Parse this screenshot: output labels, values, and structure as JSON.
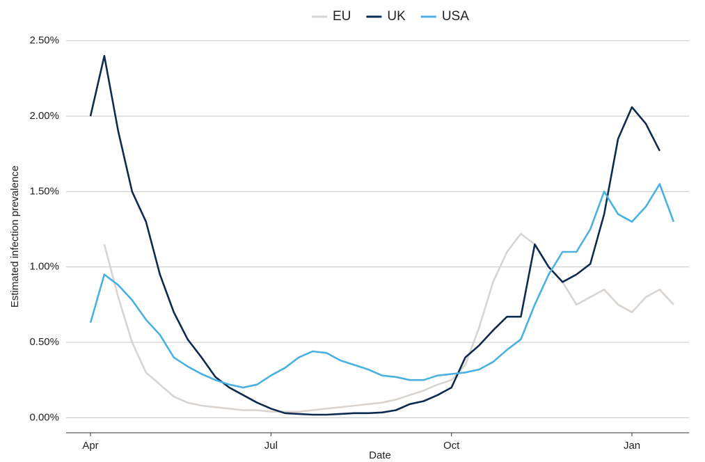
{
  "chart_data": {
    "type": "line",
    "xlabel": "Date",
    "ylabel": "Estimated infection prevalence",
    "categories": [
      "Apr",
      null,
      null,
      null,
      null,
      null,
      null,
      null,
      null,
      null,
      null,
      null,
      null,
      "Jul",
      null,
      null,
      null,
      null,
      null,
      null,
      null,
      null,
      null,
      null,
      null,
      null,
      "Oct",
      null,
      null,
      null,
      null,
      null,
      null,
      null,
      null,
      null,
      null,
      null,
      null,
      "Jan",
      null,
      null,
      null
    ],
    "series": [
      {
        "name": "EU",
        "color": "#d9d4cf",
        "values": [
          null,
          1.15,
          0.8,
          0.5,
          0.3,
          0.22,
          0.14,
          0.1,
          0.08,
          0.07,
          0.06,
          0.05,
          0.05,
          0.04,
          0.04,
          0.04,
          0.05,
          0.06,
          0.07,
          0.08,
          0.09,
          0.1,
          0.12,
          0.15,
          0.18,
          0.22,
          0.25,
          0.35,
          0.6,
          0.9,
          1.1,
          1.22,
          1.15,
          1.0,
          0.9,
          0.75,
          0.8,
          0.85,
          0.75,
          0.7,
          0.8,
          0.85,
          0.75
        ]
      },
      {
        "name": "UK",
        "color": "#0d2a4f",
        "values": [
          2.0,
          2.4,
          1.9,
          1.5,
          1.3,
          0.95,
          0.7,
          0.52,
          0.4,
          0.27,
          0.2,
          0.15,
          0.1,
          0.06,
          0.03,
          0.025,
          0.02,
          0.02,
          0.025,
          0.03,
          0.03,
          0.035,
          0.05,
          0.09,
          0.11,
          0.15,
          0.2,
          0.4,
          0.48,
          0.58,
          0.67,
          0.67,
          1.15,
          1.0,
          0.9,
          0.95,
          1.02,
          1.35,
          1.85,
          2.06,
          1.95,
          1.77,
          null
        ]
      },
      {
        "name": "USA",
        "color": "#4ab0e0",
        "values": [
          0.63,
          0.95,
          0.88,
          0.78,
          0.65,
          0.55,
          0.4,
          0.34,
          0.29,
          0.25,
          0.22,
          0.2,
          0.22,
          0.28,
          0.33,
          0.4,
          0.44,
          0.43,
          0.38,
          0.35,
          0.32,
          0.28,
          0.27,
          0.25,
          0.25,
          0.28,
          0.29,
          0.3,
          0.32,
          0.37,
          0.45,
          0.52,
          0.75,
          0.95,
          1.1,
          1.1,
          1.25,
          1.5,
          1.35,
          1.3,
          1.4,
          1.55,
          1.3
        ]
      }
    ],
    "ylim": [
      -0.1,
      2.6
    ],
    "yticks": [
      {
        "value": 0,
        "label": "0.00%"
      },
      {
        "value": 0.5,
        "label": "0.50%"
      },
      {
        "value": 1,
        "label": "1.00%"
      },
      {
        "value": 1.5,
        "label": "1.50%"
      },
      {
        "value": 2,
        "label": "2.00%"
      },
      {
        "value": 2.5,
        "label": "2.50%"
      }
    ],
    "grid": true,
    "legend": "top"
  }
}
